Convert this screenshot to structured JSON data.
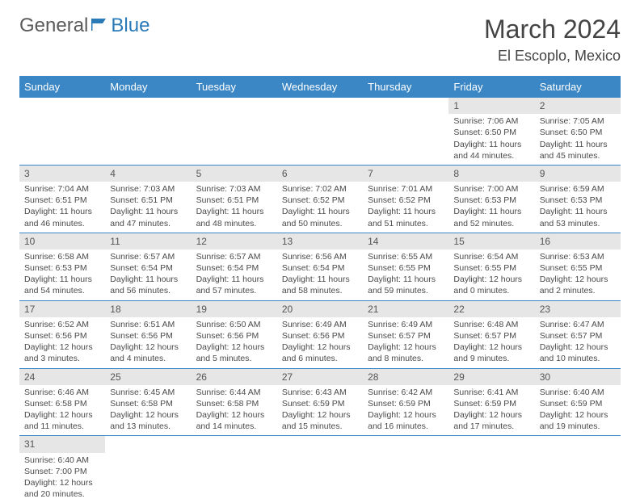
{
  "logo": {
    "part1": "General",
    "part2": "Blue"
  },
  "title": "March 2024",
  "location": "El Escoplo, Mexico",
  "colors": {
    "header_bg": "#3b86c4",
    "header_fg": "#ffffff",
    "daynum_bg": "#e6e6e6",
    "rule": "#3b86c4",
    "logo_gray": "#5a5a5a",
    "logo_blue": "#2a7ab8"
  },
  "weekdays": [
    "Sunday",
    "Monday",
    "Tuesday",
    "Wednesday",
    "Thursday",
    "Friday",
    "Saturday"
  ],
  "weeks": [
    [
      null,
      null,
      null,
      null,
      null,
      {
        "n": "1",
        "sr": "Sunrise: 7:06 AM",
        "ss": "Sunset: 6:50 PM",
        "d1": "Daylight: 11 hours",
        "d2": "and 44 minutes."
      },
      {
        "n": "2",
        "sr": "Sunrise: 7:05 AM",
        "ss": "Sunset: 6:50 PM",
        "d1": "Daylight: 11 hours",
        "d2": "and 45 minutes."
      }
    ],
    [
      {
        "n": "3",
        "sr": "Sunrise: 7:04 AM",
        "ss": "Sunset: 6:51 PM",
        "d1": "Daylight: 11 hours",
        "d2": "and 46 minutes."
      },
      {
        "n": "4",
        "sr": "Sunrise: 7:03 AM",
        "ss": "Sunset: 6:51 PM",
        "d1": "Daylight: 11 hours",
        "d2": "and 47 minutes."
      },
      {
        "n": "5",
        "sr": "Sunrise: 7:03 AM",
        "ss": "Sunset: 6:51 PM",
        "d1": "Daylight: 11 hours",
        "d2": "and 48 minutes."
      },
      {
        "n": "6",
        "sr": "Sunrise: 7:02 AM",
        "ss": "Sunset: 6:52 PM",
        "d1": "Daylight: 11 hours",
        "d2": "and 50 minutes."
      },
      {
        "n": "7",
        "sr": "Sunrise: 7:01 AM",
        "ss": "Sunset: 6:52 PM",
        "d1": "Daylight: 11 hours",
        "d2": "and 51 minutes."
      },
      {
        "n": "8",
        "sr": "Sunrise: 7:00 AM",
        "ss": "Sunset: 6:53 PM",
        "d1": "Daylight: 11 hours",
        "d2": "and 52 minutes."
      },
      {
        "n": "9",
        "sr": "Sunrise: 6:59 AM",
        "ss": "Sunset: 6:53 PM",
        "d1": "Daylight: 11 hours",
        "d2": "and 53 minutes."
      }
    ],
    [
      {
        "n": "10",
        "sr": "Sunrise: 6:58 AM",
        "ss": "Sunset: 6:53 PM",
        "d1": "Daylight: 11 hours",
        "d2": "and 54 minutes."
      },
      {
        "n": "11",
        "sr": "Sunrise: 6:57 AM",
        "ss": "Sunset: 6:54 PM",
        "d1": "Daylight: 11 hours",
        "d2": "and 56 minutes."
      },
      {
        "n": "12",
        "sr": "Sunrise: 6:57 AM",
        "ss": "Sunset: 6:54 PM",
        "d1": "Daylight: 11 hours",
        "d2": "and 57 minutes."
      },
      {
        "n": "13",
        "sr": "Sunrise: 6:56 AM",
        "ss": "Sunset: 6:54 PM",
        "d1": "Daylight: 11 hours",
        "d2": "and 58 minutes."
      },
      {
        "n": "14",
        "sr": "Sunrise: 6:55 AM",
        "ss": "Sunset: 6:55 PM",
        "d1": "Daylight: 11 hours",
        "d2": "and 59 minutes."
      },
      {
        "n": "15",
        "sr": "Sunrise: 6:54 AM",
        "ss": "Sunset: 6:55 PM",
        "d1": "Daylight: 12 hours",
        "d2": "and 0 minutes."
      },
      {
        "n": "16",
        "sr": "Sunrise: 6:53 AM",
        "ss": "Sunset: 6:55 PM",
        "d1": "Daylight: 12 hours",
        "d2": "and 2 minutes."
      }
    ],
    [
      {
        "n": "17",
        "sr": "Sunrise: 6:52 AM",
        "ss": "Sunset: 6:56 PM",
        "d1": "Daylight: 12 hours",
        "d2": "and 3 minutes."
      },
      {
        "n": "18",
        "sr": "Sunrise: 6:51 AM",
        "ss": "Sunset: 6:56 PM",
        "d1": "Daylight: 12 hours",
        "d2": "and 4 minutes."
      },
      {
        "n": "19",
        "sr": "Sunrise: 6:50 AM",
        "ss": "Sunset: 6:56 PM",
        "d1": "Daylight: 12 hours",
        "d2": "and 5 minutes."
      },
      {
        "n": "20",
        "sr": "Sunrise: 6:49 AM",
        "ss": "Sunset: 6:56 PM",
        "d1": "Daylight: 12 hours",
        "d2": "and 6 minutes."
      },
      {
        "n": "21",
        "sr": "Sunrise: 6:49 AM",
        "ss": "Sunset: 6:57 PM",
        "d1": "Daylight: 12 hours",
        "d2": "and 8 minutes."
      },
      {
        "n": "22",
        "sr": "Sunrise: 6:48 AM",
        "ss": "Sunset: 6:57 PM",
        "d1": "Daylight: 12 hours",
        "d2": "and 9 minutes."
      },
      {
        "n": "23",
        "sr": "Sunrise: 6:47 AM",
        "ss": "Sunset: 6:57 PM",
        "d1": "Daylight: 12 hours",
        "d2": "and 10 minutes."
      }
    ],
    [
      {
        "n": "24",
        "sr": "Sunrise: 6:46 AM",
        "ss": "Sunset: 6:58 PM",
        "d1": "Daylight: 12 hours",
        "d2": "and 11 minutes."
      },
      {
        "n": "25",
        "sr": "Sunrise: 6:45 AM",
        "ss": "Sunset: 6:58 PM",
        "d1": "Daylight: 12 hours",
        "d2": "and 13 minutes."
      },
      {
        "n": "26",
        "sr": "Sunrise: 6:44 AM",
        "ss": "Sunset: 6:58 PM",
        "d1": "Daylight: 12 hours",
        "d2": "and 14 minutes."
      },
      {
        "n": "27",
        "sr": "Sunrise: 6:43 AM",
        "ss": "Sunset: 6:59 PM",
        "d1": "Daylight: 12 hours",
        "d2": "and 15 minutes."
      },
      {
        "n": "28",
        "sr": "Sunrise: 6:42 AM",
        "ss": "Sunset: 6:59 PM",
        "d1": "Daylight: 12 hours",
        "d2": "and 16 minutes."
      },
      {
        "n": "29",
        "sr": "Sunrise: 6:41 AM",
        "ss": "Sunset: 6:59 PM",
        "d1": "Daylight: 12 hours",
        "d2": "and 17 minutes."
      },
      {
        "n": "30",
        "sr": "Sunrise: 6:40 AM",
        "ss": "Sunset: 6:59 PM",
        "d1": "Daylight: 12 hours",
        "d2": "and 19 minutes."
      }
    ],
    [
      {
        "n": "31",
        "sr": "Sunrise: 6:40 AM",
        "ss": "Sunset: 7:00 PM",
        "d1": "Daylight: 12 hours",
        "d2": "and 20 minutes."
      },
      null,
      null,
      null,
      null,
      null,
      null
    ]
  ]
}
